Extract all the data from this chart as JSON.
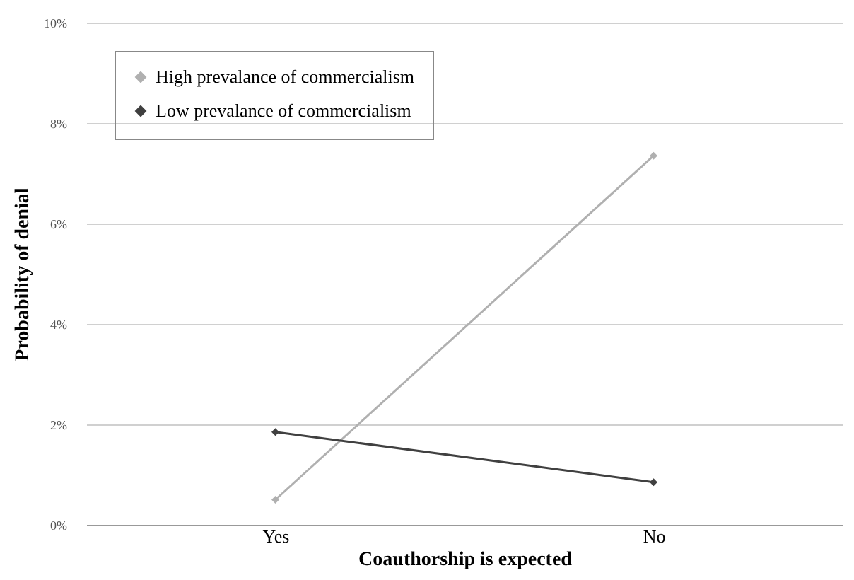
{
  "chart_data": {
    "type": "line",
    "xlabel": "Coauthorship is expected",
    "ylabel": "Probability of denial",
    "categories": [
      "Yes",
      "No"
    ],
    "series": [
      {
        "name": "High prevalance of commercialism",
        "color": "#b0b0b0",
        "values": [
          0.5,
          7.35
        ]
      },
      {
        "name": "Low prevalance of commercialism",
        "color": "#404040",
        "values": [
          1.85,
          0.85
        ]
      }
    ],
    "ylim": [
      0,
      10
    ],
    "yticks": [
      {
        "value": 0,
        "label": "0%"
      },
      {
        "value": 2,
        "label": "2%"
      },
      {
        "value": 4,
        "label": "4%"
      },
      {
        "value": 6,
        "label": "6%"
      },
      {
        "value": 8,
        "label": "8%"
      },
      {
        "value": 10,
        "label": "10%"
      }
    ],
    "grid": "y",
    "legend": "top left",
    "marker": "diamond",
    "line_style": "solid"
  }
}
